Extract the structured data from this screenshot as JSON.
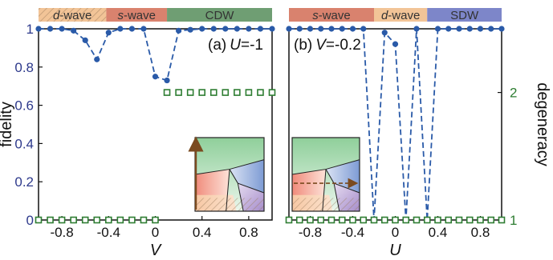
{
  "chart_data": [
    {
      "type": "line",
      "panel_label": "(a) U=-1",
      "panel_tag": "(a)",
      "panel_var": "U",
      "panel_val": "=-1",
      "xlabel": "V",
      "ylabel": "fidelity",
      "xlim": [
        -1.0,
        1.0
      ],
      "ylim": [
        0,
        1
      ],
      "y2lim": [
        1,
        2
      ],
      "x_ticks": [
        "-0.8",
        "-0.4",
        "0",
        "0.4",
        "0.8"
      ],
      "y_ticks": [
        "0",
        "0.2",
        "0.4",
        "0.6",
        "0.8",
        "1"
      ],
      "y2_ticks": [
        "1",
        "2"
      ],
      "phases": [
        {
          "label": "d-wave",
          "letter": "d",
          "suffix": "-wave",
          "from": -1.0,
          "to": -0.42,
          "color": "#f2c497",
          "hatched": true
        },
        {
          "label": "s-wave",
          "letter": "s",
          "suffix": "-wave",
          "from": -0.42,
          "to": 0.1,
          "color": "#d9826e",
          "hatched": false
        },
        {
          "label": "CDW",
          "letter": "",
          "suffix": "CDW",
          "from": 0.1,
          "to": 1.0,
          "color": "#6f9e73",
          "hatched": false
        }
      ],
      "series": [
        {
          "axis": "left",
          "color": "#2a5aa8",
          "x": [
            -1.0,
            -0.9,
            -0.8,
            -0.7,
            -0.6,
            -0.5,
            -0.4,
            -0.3,
            -0.2,
            -0.1,
            0.0,
            0.1,
            0.2,
            0.3,
            0.4,
            0.5,
            0.6,
            0.7,
            0.8,
            0.9,
            1.0
          ],
          "y": [
            1.0,
            1.0,
            1.0,
            0.99,
            0.94,
            0.84,
            0.98,
            1.0,
            1.0,
            1.0,
            0.75,
            0.73,
            0.99,
            0.995,
            1.0,
            1.0,
            1.0,
            1.0,
            1.0,
            1.0,
            1.0
          ]
        },
        {
          "axis": "right",
          "color": "#2e7d32",
          "x": [
            -1.0,
            -0.9,
            -0.8,
            -0.7,
            -0.6,
            -0.5,
            -0.4,
            -0.3,
            -0.2,
            -0.1,
            0.0,
            0.1,
            0.2,
            0.3,
            0.4,
            0.5,
            0.6,
            0.7,
            0.8,
            0.9,
            1.0
          ],
          "y": [
            1,
            1,
            1,
            1,
            1,
            1,
            1,
            1,
            1,
            1,
            1,
            2,
            2,
            2,
            2,
            2,
            2,
            2,
            2,
            2,
            2
          ]
        }
      ],
      "inset_arrow": "vertical"
    },
    {
      "type": "line",
      "panel_label": "(b) V=-0.2",
      "panel_tag": "(b)",
      "panel_var": "V",
      "panel_val": "=-0.2",
      "xlabel": "U",
      "ylabel": "degeneracy",
      "xlim": [
        -1.0,
        1.0
      ],
      "ylim": [
        0,
        1
      ],
      "y2lim": [
        1,
        2
      ],
      "x_ticks": [
        "-0.8",
        "-0.4",
        "0",
        "0.4",
        "0.8"
      ],
      "y_ticks": [],
      "y2_ticks": [
        "1",
        "2"
      ],
      "phases": [
        {
          "label": "s-wave",
          "letter": "s",
          "suffix": "-wave",
          "from": -1.0,
          "to": -0.2,
          "color": "#d9826e",
          "hatched": false
        },
        {
          "label": "d-wave",
          "letter": "d",
          "suffix": "-wave",
          "from": -0.2,
          "to": 0.3,
          "color": "#f2c497",
          "hatched": false
        },
        {
          "label": "SDW",
          "letter": "",
          "suffix": "SDW",
          "from": 0.3,
          "to": 1.0,
          "color": "#7d86c9",
          "hatched": false
        }
      ],
      "series": [
        {
          "axis": "left",
          "color": "#2a5aa8",
          "x": [
            -1.0,
            -0.9,
            -0.8,
            -0.7,
            -0.6,
            -0.5,
            -0.4,
            -0.3,
            -0.2,
            -0.1,
            0.0,
            0.1,
            0.2,
            0.3,
            0.4,
            0.5,
            0.6,
            0.7,
            0.8,
            0.9,
            1.0
          ],
          "y": [
            1.0,
            1.0,
            1.0,
            1.0,
            1.0,
            1.0,
            1.0,
            1.0,
            0.0,
            0.98,
            0.92,
            0.0,
            1.0,
            0.0,
            1.0,
            1.0,
            1.0,
            1.0,
            1.0,
            1.0,
            1.0
          ]
        },
        {
          "axis": "right",
          "color": "#2e7d32",
          "x": [
            -1.0,
            -0.9,
            -0.8,
            -0.7,
            -0.6,
            -0.5,
            -0.4,
            -0.3,
            -0.2,
            -0.1,
            0.0,
            0.1,
            0.2,
            0.3,
            0.4,
            0.5,
            0.6,
            0.7,
            0.8,
            0.9,
            1.0
          ],
          "y": [
            1,
            1,
            1,
            1,
            1,
            1,
            1,
            1,
            1,
            1,
            1,
            1,
            1,
            1,
            1,
            1,
            1,
            1,
            1,
            1,
            1
          ]
        }
      ],
      "inset_arrow": "horizontal"
    }
  ]
}
